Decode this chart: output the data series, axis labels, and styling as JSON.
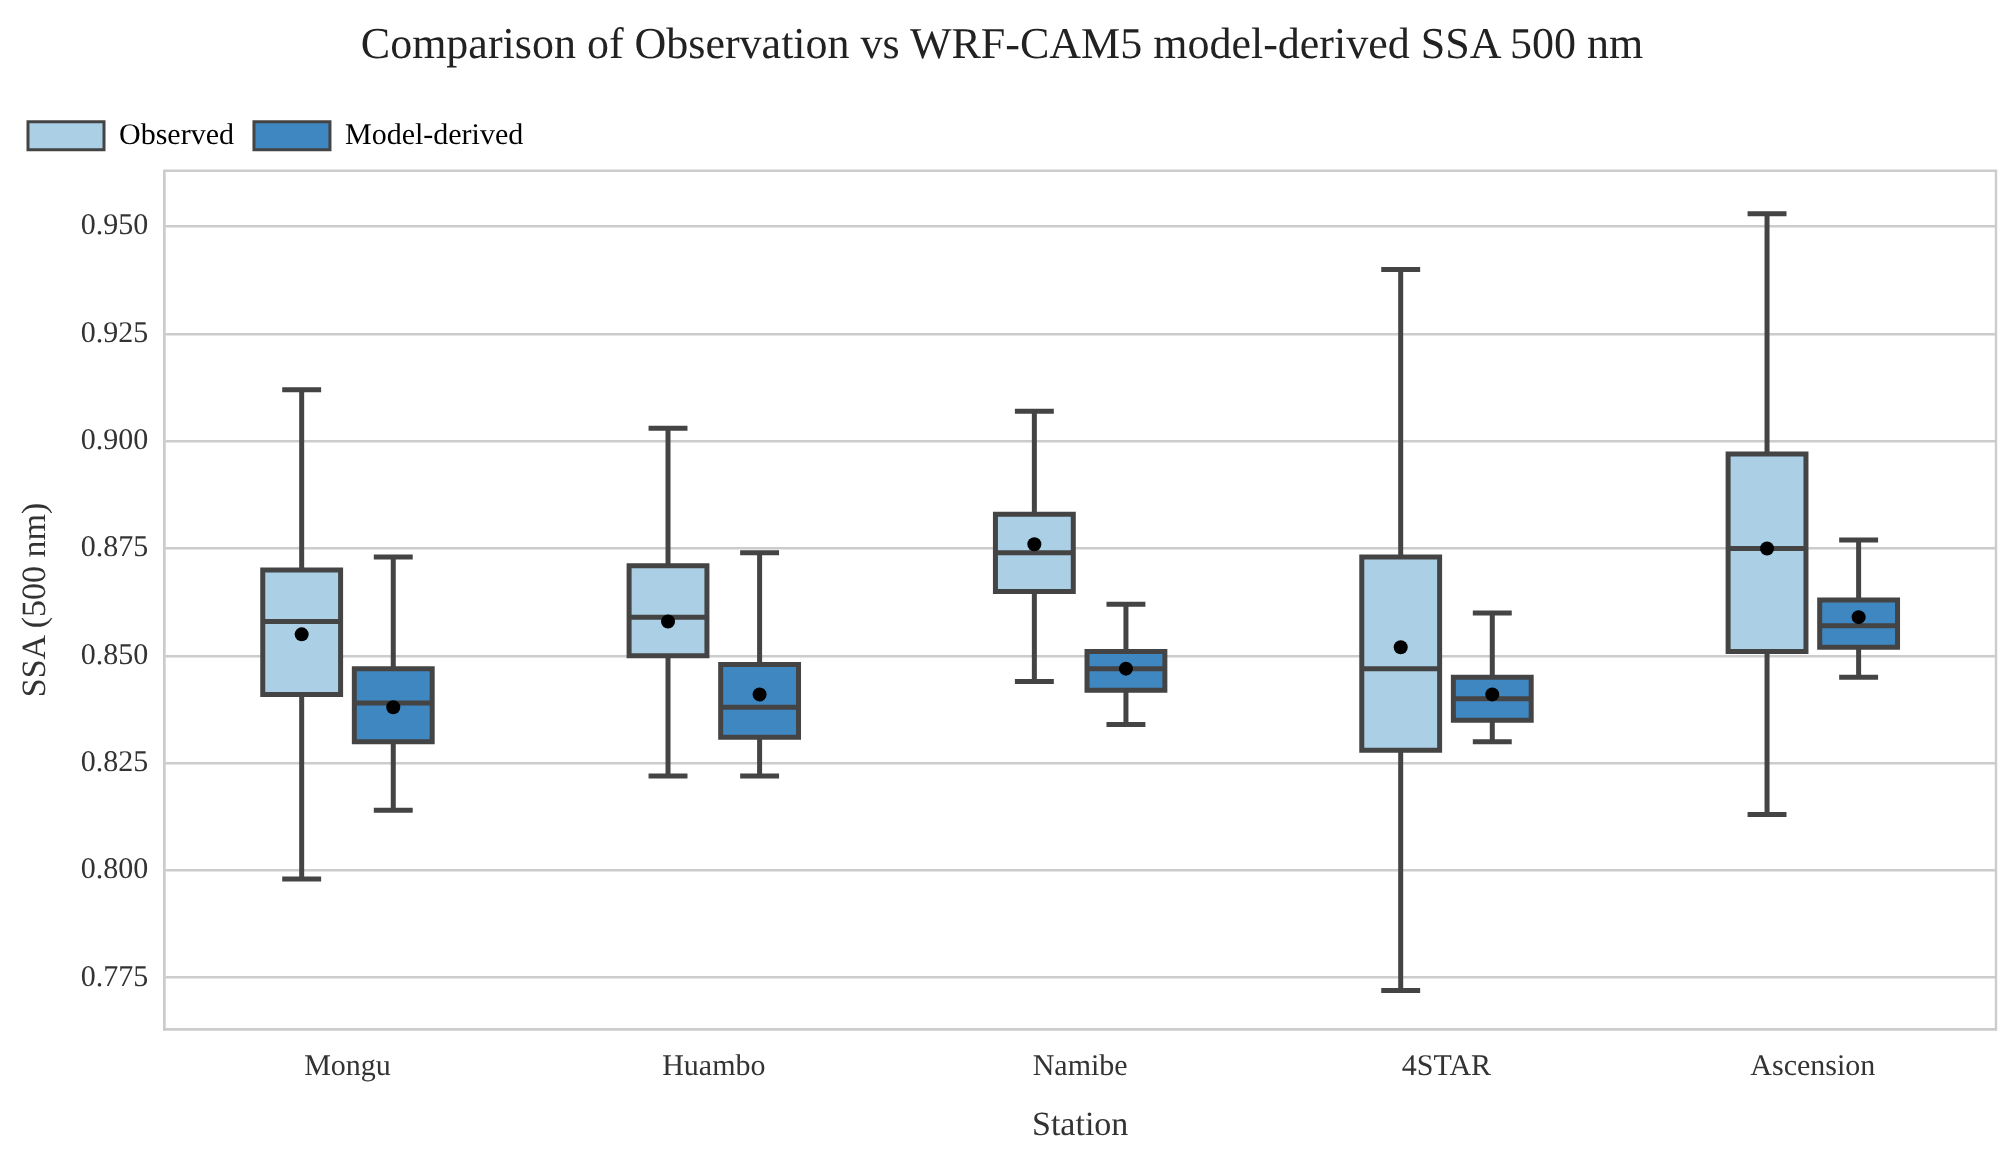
{
  "chart_data": {
    "type": "box",
    "title": "Comparison of Observation vs WRF-CAM5 model-derived SSA 500 nm",
    "xlabel": "Station",
    "ylabel": "SSA (500 nm)",
    "categories": [
      "Mongu",
      "Huambo",
      "Namibe",
      "4STAR",
      "Ascension"
    ],
    "series": [
      {
        "name": "Observed",
        "color": "#abcfe5",
        "boxes": [
          {
            "low": 0.798,
            "q1": 0.841,
            "median": 0.858,
            "q3": 0.87,
            "high": 0.912,
            "mean": 0.855
          },
          {
            "low": 0.822,
            "q1": 0.85,
            "median": 0.859,
            "q3": 0.871,
            "high": 0.903,
            "mean": 0.858
          },
          {
            "low": 0.844,
            "q1": 0.865,
            "median": 0.874,
            "q3": 0.883,
            "high": 0.907,
            "mean": 0.876
          },
          {
            "low": 0.772,
            "q1": 0.828,
            "median": 0.847,
            "q3": 0.873,
            "high": 0.94,
            "mean": 0.852
          },
          {
            "low": 0.813,
            "q1": 0.851,
            "median": 0.875,
            "q3": 0.897,
            "high": 0.953,
            "mean": 0.875
          }
        ]
      },
      {
        "name": "Model-derived",
        "color": "#3f87c0",
        "boxes": [
          {
            "low": 0.814,
            "q1": 0.83,
            "median": 0.839,
            "q3": 0.847,
            "high": 0.873,
            "mean": 0.838
          },
          {
            "low": 0.822,
            "q1": 0.831,
            "median": 0.838,
            "q3": 0.848,
            "high": 0.874,
            "mean": 0.841
          },
          {
            "low": 0.834,
            "q1": 0.842,
            "median": 0.847,
            "q3": 0.851,
            "high": 0.862,
            "mean": 0.847
          },
          {
            "low": 0.83,
            "q1": 0.835,
            "median": 0.84,
            "q3": 0.845,
            "high": 0.86,
            "mean": 0.841
          },
          {
            "low": 0.845,
            "q1": 0.852,
            "median": 0.857,
            "q3": 0.863,
            "high": 0.877,
            "mean": 0.859
          }
        ]
      }
    ],
    "ylim": [
      0.763,
      0.963
    ],
    "yticks": [
      {
        "value": 0.775,
        "label": "0.775"
      },
      {
        "value": 0.8,
        "label": "0.800"
      },
      {
        "value": 0.825,
        "label": "0.825"
      },
      {
        "value": 0.85,
        "label": "0.850"
      },
      {
        "value": 0.875,
        "label": "0.875"
      },
      {
        "value": 0.9,
        "label": "0.900"
      },
      {
        "value": 0.925,
        "label": "0.925"
      },
      {
        "value": 0.95,
        "label": "0.950"
      }
    ],
    "grid": "y",
    "legend": "top left"
  }
}
